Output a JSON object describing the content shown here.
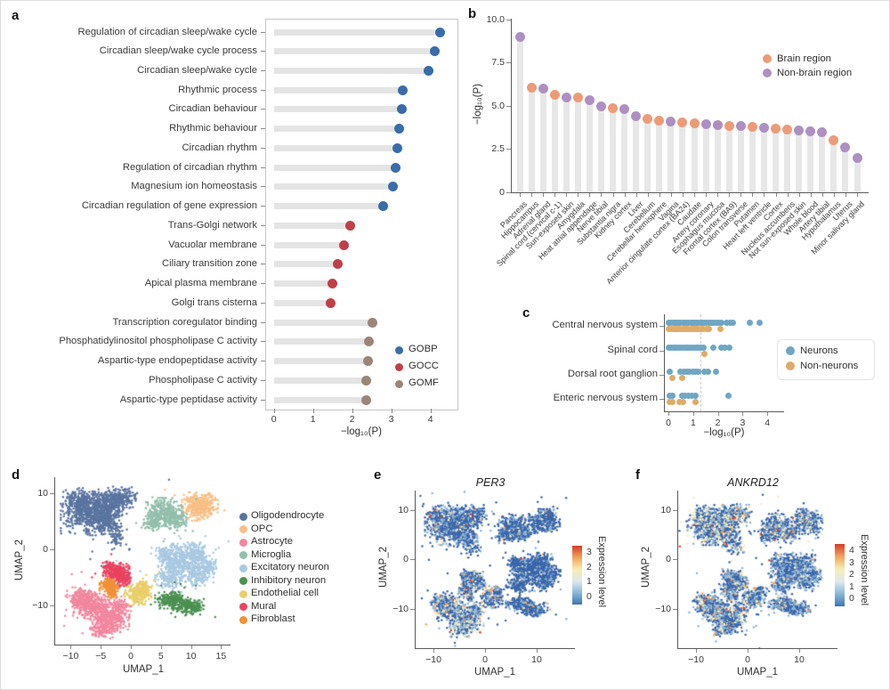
{
  "labels": {
    "a": "a",
    "b": "b",
    "c": "c",
    "d": "d",
    "e": "e",
    "f": "f"
  },
  "chart_data": [
    {
      "id": "a",
      "type": "bar",
      "subtype": "horizontal-lollipop",
      "xlabel": "−log₁₀(P)",
      "x_ticks": [
        "0",
        "1",
        "2",
        "3",
        "4"
      ],
      "x_max": 4.55,
      "legend": [
        {
          "label": "GOBP",
          "color": "#3a6ca8"
        },
        {
          "label": "GOCC",
          "color": "#bf4049"
        },
        {
          "label": "GOMF",
          "color": "#9b8578"
        }
      ],
      "rows": [
        {
          "term": "Regulation of circadian sleep/wake cycle",
          "value": 4.25,
          "group": "GOBP"
        },
        {
          "term": "Circadian sleep/wake cycle process",
          "value": 4.12,
          "group": "GOBP"
        },
        {
          "term": "Circadian sleep/wake cycle",
          "value": 3.95,
          "group": "GOBP"
        },
        {
          "term": "Rhythmic process",
          "value": 3.3,
          "group": "GOBP"
        },
        {
          "term": "Circadian behaviour",
          "value": 3.26,
          "group": "GOBP"
        },
        {
          "term": "Rhythmic behaviour",
          "value": 3.21,
          "group": "GOBP"
        },
        {
          "term": "Circadian rhythm",
          "value": 3.15,
          "group": "GOBP"
        },
        {
          "term": "Regulation of circadian rhythm",
          "value": 3.12,
          "group": "GOBP"
        },
        {
          "term": "Magnesium ion homeostasis",
          "value": 3.05,
          "group": "GOBP"
        },
        {
          "term": "Circadian regulation of gene expression",
          "value": 2.8,
          "group": "GOBP"
        },
        {
          "term": "Trans-Golgi network",
          "value": 1.96,
          "group": "GOCC"
        },
        {
          "term": "Vacuolar membrane",
          "value": 1.8,
          "group": "GOCC"
        },
        {
          "term": "Ciliary transition zone",
          "value": 1.64,
          "group": "GOCC"
        },
        {
          "term": "Apical plasma membrane",
          "value": 1.5,
          "group": "GOCC"
        },
        {
          "term": "Golgi trans cisterna",
          "value": 1.45,
          "group": "GOCC"
        },
        {
          "term": "Transcription coregulator binding",
          "value": 2.52,
          "group": "GOMF"
        },
        {
          "term": "Phosphatidylinositol phospholipase C activity",
          "value": 2.42,
          "group": "GOMF"
        },
        {
          "term": "Aspartic-type endopeptidase activity",
          "value": 2.4,
          "group": "GOMF"
        },
        {
          "term": "Phospholipase C activity",
          "value": 2.37,
          "group": "GOMF"
        },
        {
          "term": "Aspartic-type peptidase activity",
          "value": 2.35,
          "group": "GOMF"
        }
      ]
    },
    {
      "id": "b",
      "type": "bar",
      "subtype": "vertical-lollipop",
      "ylabel": "−log₁₀(P)",
      "y_ticks": [
        [
          "10.0",
          10
        ],
        [
          "7.5",
          7.5
        ],
        [
          "5.0",
          5
        ],
        [
          "2.5",
          2.5
        ],
        [
          "0",
          0
        ]
      ],
      "legend": [
        {
          "label": "Brain region",
          "color": "#ec9b79"
        },
        {
          "label": "Non-brain region",
          "color": "#ad90c1"
        }
      ],
      "tissues": [
        {
          "name": "Pancreas",
          "value": 9.0,
          "group": "Non-brain region"
        },
        {
          "name": "Hippocampus",
          "value": 6.05,
          "group": "Brain region"
        },
        {
          "name": "Adrenal gland",
          "value": 6.0,
          "group": "Non-brain region"
        },
        {
          "name": "Spinal cord (cervical c-1)",
          "value": 5.65,
          "group": "Brain region"
        },
        {
          "name": "Sun-exposed skin",
          "value": 5.5,
          "group": "Non-brain region"
        },
        {
          "name": "Amygdala",
          "value": 5.45,
          "group": "Brain region"
        },
        {
          "name": "Heat atrial appendage",
          "value": 5.3,
          "group": "Non-brain region"
        },
        {
          "name": "Nerve tibial",
          "value": 4.95,
          "group": "Non-brain region"
        },
        {
          "name": "Substantia nigra",
          "value": 4.85,
          "group": "Brain region"
        },
        {
          "name": "Kidney cortex",
          "value": 4.78,
          "group": "Non-brain region"
        },
        {
          "name": "Liver",
          "value": 4.4,
          "group": "Non-brain region"
        },
        {
          "name": "Cerebellum",
          "value": 4.25,
          "group": "Brain region"
        },
        {
          "name": "Cerebellar hemisphere",
          "value": 4.15,
          "group": "Brain region"
        },
        {
          "name": "Vagina",
          "value": 4.1,
          "group": "Non-brain region"
        },
        {
          "name": "Anterior cingulate cortex (BA24)",
          "value": 4.05,
          "group": "Brain region"
        },
        {
          "name": "Caudate",
          "value": 4.0,
          "group": "Brain region"
        },
        {
          "name": "Artery coronary",
          "value": 3.95,
          "group": "Non-brain region"
        },
        {
          "name": "Esophagus mucosa",
          "value": 3.9,
          "group": "Non-brain region"
        },
        {
          "name": "Frontal cortex (BA9)",
          "value": 3.85,
          "group": "Brain region"
        },
        {
          "name": "Colon transverse",
          "value": 3.8,
          "group": "Non-brain region"
        },
        {
          "name": "Putamen",
          "value": 3.75,
          "group": "Brain region"
        },
        {
          "name": "Heart left ventricle",
          "value": 3.7,
          "group": "Non-brain region"
        },
        {
          "name": "Cortex",
          "value": 3.65,
          "group": "Brain region"
        },
        {
          "name": "Nucleus accumbens",
          "value": 3.6,
          "group": "Brain region"
        },
        {
          "name": "Not sun-exposed skin",
          "value": 3.55,
          "group": "Non-brain region"
        },
        {
          "name": "Whole blood",
          "value": 3.5,
          "group": "Non-brain region"
        },
        {
          "name": "Artery tibial",
          "value": 3.45,
          "group": "Non-brain region"
        },
        {
          "name": "Hypothalamus",
          "value": 3.0,
          "group": "Brain region"
        },
        {
          "name": "Uterus",
          "value": 2.6,
          "group": "Non-brain region"
        },
        {
          "name": "Minor salivary gland",
          "value": 1.95,
          "group": "Non-brain region"
        }
      ]
    },
    {
      "id": "c",
      "type": "scatter",
      "subtype": "strip-dot",
      "xlabel": "−log₁₀(P)",
      "x_ticks": [
        0,
        1,
        2,
        3,
        4
      ],
      "threshold": 1.3,
      "legend": [
        {
          "label": "Neurons",
          "color": "#6fa6c3"
        },
        {
          "label": "Non-neurons",
          "color": "#dfab69"
        }
      ],
      "categories": [
        {
          "name": "Central nervous system",
          "neurons": [
            0.02,
            0.1,
            0.18,
            0.26,
            0.34,
            0.42,
            0.5,
            0.58,
            0.66,
            0.74,
            0.82,
            0.9,
            0.98,
            1.06,
            1.14,
            1.22,
            1.3,
            1.38,
            1.46,
            1.54,
            1.62,
            1.7,
            1.78,
            1.86,
            1.95,
            2.05,
            2.15,
            2.35,
            2.5,
            2.62,
            3.3,
            3.7
          ],
          "non_neurons": [
            0.02,
            0.1,
            0.18,
            0.26,
            0.34,
            0.42,
            0.5,
            0.58,
            0.66,
            0.74,
            0.82,
            0.9,
            0.98,
            1.06,
            1.14,
            1.22,
            1.3,
            1.42,
            1.55,
            1.62,
            2.1
          ]
        },
        {
          "name": "Spinal cord",
          "neurons": [
            0.02,
            0.12,
            0.22,
            0.32,
            0.42,
            0.52,
            0.62,
            0.72,
            0.82,
            0.92,
            1.02,
            1.12,
            1.22,
            1.32,
            1.42,
            1.8,
            2.15,
            2.3,
            2.45
          ],
          "non_neurons": [
            1.45
          ]
        },
        {
          "name": "Dorsal root ganglion",
          "neurons": [
            0.05,
            0.5,
            0.62,
            0.74,
            0.86,
            0.98,
            1.1,
            1.22,
            1.45,
            1.6,
            1.92
          ],
          "non_neurons": [
            0.15,
            0.55
          ]
        },
        {
          "name": "Enteric nervous system",
          "neurons": [
            0.05,
            0.15,
            0.55,
            0.68,
            0.82,
            0.95,
            1.08,
            2.42
          ],
          "non_neurons": [
            0.05,
            0.15,
            0.45,
            0.6,
            1.1
          ]
        }
      ]
    },
    {
      "id": "d",
      "type": "scatter",
      "subtype": "umap-clusters",
      "xlabel": "UMAP_1",
      "ylabel": "UMAP_2",
      "x_ticks": [
        "−10",
        "−5",
        "0",
        "5",
        "10",
        "15"
      ],
      "x_tick_vals": [
        -10,
        -5,
        0,
        5,
        10,
        15
      ],
      "y_ticks": [
        "10",
        "0",
        "−10"
      ],
      "y_tick_vals": [
        10,
        0,
        -10
      ],
      "clusters": [
        {
          "name": "Oligodendrocyte",
          "color": "#5a74a0",
          "blobs": [
            [
              -7.5,
              6.5,
              3.6,
              3.2,
              420
            ],
            [
              -4,
              8.2,
              3.0,
              2.4,
              330
            ],
            [
              -8.5,
              8.8,
              2.4,
              1.8,
              180
            ],
            [
              -4.5,
              5,
              2.6,
              2.2,
              260
            ],
            [
              -1.5,
              9.3,
              2.0,
              1.6,
              140
            ],
            [
              -2.5,
              2.5,
              1.6,
              2.2,
              70
            ]
          ]
        },
        {
          "name": "OPC",
          "color": "#f8bf87",
          "blobs": [
            [
              11.5,
              7.6,
              2.6,
              2.2,
              380
            ]
          ]
        },
        {
          "name": "Astrocyte",
          "color": "#f2879f",
          "blobs": [
            [
              -6.5,
              -10,
              2.8,
              2.2,
              380
            ],
            [
              -3.5,
              -12.3,
              2.8,
              2.2,
              330
            ],
            [
              -8.3,
              -8.6,
              2.0,
              1.6,
              160
            ],
            [
              -4.5,
              -14.2,
              2.0,
              1.4,
              130
            ],
            [
              -1.8,
              -10.3,
              1.6,
              1.4,
              100
            ]
          ]
        },
        {
          "name": "Microglia",
          "color": "#93bfac",
          "blobs": [
            [
              5.5,
              6.6,
              2.6,
              2.2,
              300
            ],
            [
              7.6,
              5.2,
              1.8,
              1.6,
              130
            ],
            [
              3.9,
              4.8,
              1.6,
              1.4,
              120
            ]
          ]
        },
        {
          "name": "Excitatory neuron",
          "color": "#a9c9e1",
          "blobs": [
            [
              8,
              -2,
              3.0,
              2.6,
              380
            ],
            [
              11.2,
              -4.2,
              2.2,
              2.0,
              200
            ],
            [
              6.6,
              -5,
              2.2,
              1.8,
              170
            ],
            [
              10.8,
              -0.6,
              2.0,
              1.6,
              170
            ],
            [
              13,
              -3,
              1.4,
              1.4,
              80
            ],
            [
              5.8,
              -0.8,
              1.4,
              1.4,
              80
            ]
          ]
        },
        {
          "name": "Inhibitory neuron",
          "color": "#4b9052",
          "blobs": [
            [
              6.8,
              -9,
              2.4,
              1.3,
              220
            ],
            [
              9.6,
              -10.2,
              2.2,
              1.2,
              200
            ]
          ]
        },
        {
          "name": "Endothelial cell",
          "color": "#e9cf6b",
          "blobs": [
            [
              1.2,
              -7.9,
              1.9,
              1.7,
              230
            ],
            [
              2.4,
              -6.6,
              1.1,
              1.0,
              60
            ]
          ]
        },
        {
          "name": "Mural",
          "color": "#e84360",
          "blobs": [
            [
              -2.4,
              -4.1,
              1.9,
              1.5,
              230
            ],
            [
              -1.2,
              -5.3,
              1.3,
              1.1,
              80
            ],
            [
              -3.8,
              -3.2,
              1.1,
              1.0,
              60
            ]
          ]
        },
        {
          "name": "Fibroblast",
          "color": "#f09137",
          "blobs": [
            [
              -3.7,
              -6.3,
              1.3,
              1.2,
              150
            ],
            [
              -3,
              -7.6,
              1.0,
              0.9,
              70
            ]
          ]
        }
      ]
    },
    {
      "id": "e",
      "type": "scatter",
      "subtype": "umap-feature",
      "title": "PER3",
      "xlabel": "UMAP_1",
      "ylabel": "UMAP_2",
      "x_ticks": [
        "−10",
        "0",
        "10"
      ],
      "x_tick_vals": [
        -10,
        0,
        10
      ],
      "y_ticks": [
        "10",
        "0",
        "−10"
      ],
      "y_tick_vals": [
        10,
        0,
        -10
      ],
      "colorbar": {
        "label": "Expression level",
        "ticks": [
          3,
          2,
          1,
          0
        ],
        "gradient": [
          "#d73a28",
          "#f2a45c",
          "#f7edb4",
          "#dfe9ee",
          "#8ab8d8",
          "#3f74b5"
        ]
      },
      "level_colors": [
        "#3a66ab",
        "#8db4d6",
        "#f2ecc3",
        "#f2a45c",
        "#d6402c"
      ],
      "expression_weights": [
        [
          0.62,
          0.25,
          0.1,
          0.03
        ],
        [
          0.7,
          0.22,
          0.06,
          0.02
        ],
        [
          0.4,
          0.3,
          0.25,
          0.05
        ],
        [
          0.75,
          0.18,
          0.05,
          0.02
        ],
        [
          0.82,
          0.14,
          0.03,
          0.01
        ],
        [
          0.72,
          0.2,
          0.06,
          0.02
        ],
        [
          0.55,
          0.25,
          0.15,
          0.05
        ],
        [
          0.55,
          0.28,
          0.12,
          0.05
        ],
        [
          0.5,
          0.28,
          0.16,
          0.06
        ]
      ]
    },
    {
      "id": "f",
      "type": "scatter",
      "subtype": "umap-feature",
      "title": "ANKRD12",
      "xlabel": "UMAP_1",
      "ylabel": "UMAP_2",
      "x_ticks": [
        "−10",
        "0",
        "10"
      ],
      "x_tick_vals": [
        -10,
        0,
        10
      ],
      "y_ticks": [
        "10",
        "0",
        "−10"
      ],
      "y_tick_vals": [
        10,
        0,
        -10
      ],
      "colorbar": {
        "label": "Expression level",
        "ticks": [
          4,
          3,
          2,
          1,
          0
        ],
        "gradient": [
          "#d73a28",
          "#f2a45c",
          "#f7edb4",
          "#dfe9ee",
          "#8ab8d8",
          "#3f74b5"
        ]
      },
      "level_colors": [
        "#3a66ab",
        "#8db4d6",
        "#f2ecc3",
        "#f2a45c",
        "#d6402c"
      ],
      "expression_weights": [
        [
          0.45,
          0.25,
          0.25,
          0.05
        ],
        [
          0.5,
          0.25,
          0.2,
          0.05
        ],
        [
          0.45,
          0.28,
          0.22,
          0.05
        ],
        [
          0.5,
          0.28,
          0.17,
          0.05
        ],
        [
          0.56,
          0.34,
          0.09,
          0.01
        ],
        [
          0.55,
          0.3,
          0.13,
          0.02
        ],
        [
          0.45,
          0.3,
          0.2,
          0.05
        ],
        [
          0.45,
          0.3,
          0.2,
          0.05
        ],
        [
          0.45,
          0.3,
          0.2,
          0.05
        ]
      ]
    }
  ]
}
